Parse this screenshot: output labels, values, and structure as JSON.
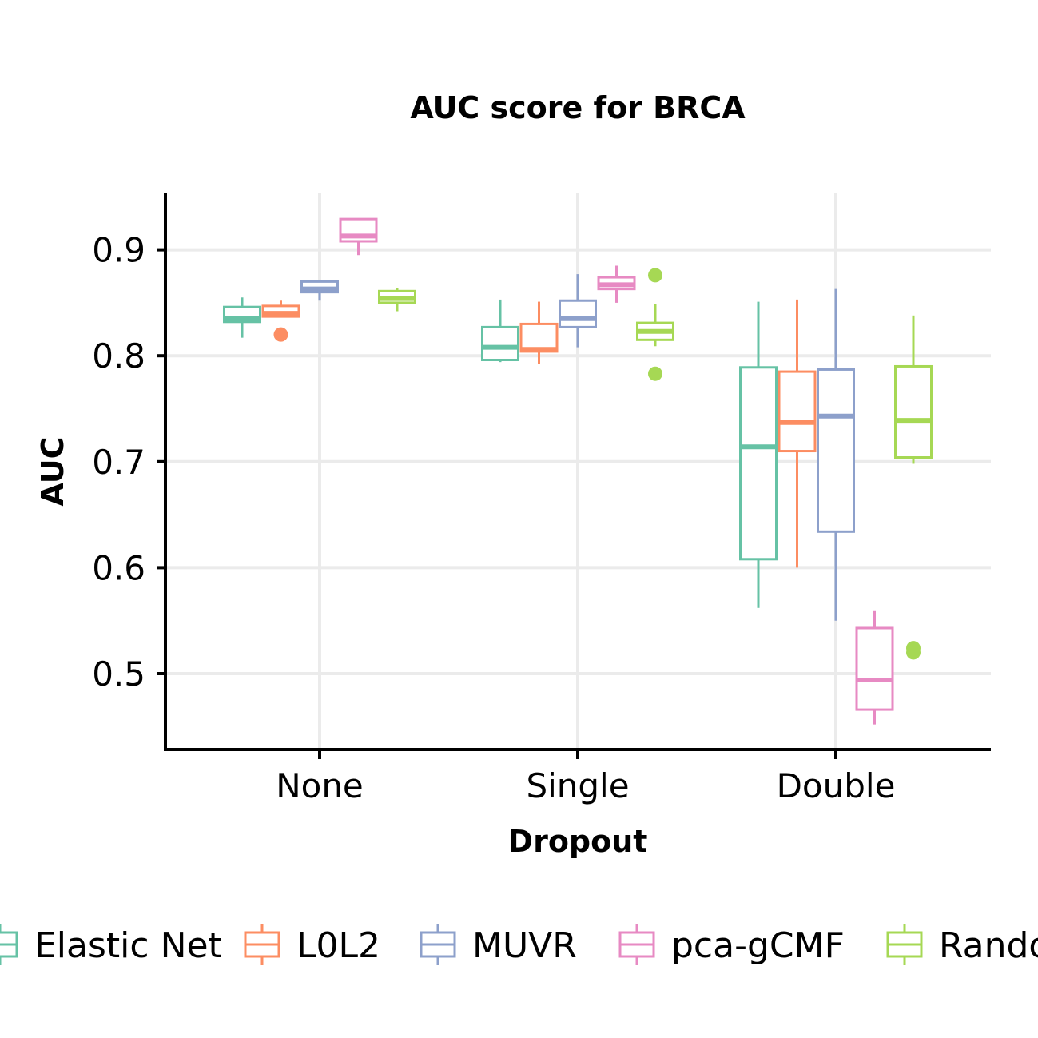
{
  "chart_data": {
    "type": "box",
    "title": "AUC score for BRCA",
    "xlabel": "Dropout",
    "ylabel": "AUC",
    "categories": [
      "None",
      "Single",
      "Double"
    ],
    "ylim": [
      0.425,
      0.95
    ],
    "yticks": [
      0.5,
      0.6,
      0.7,
      0.8,
      0.9
    ],
    "ytick_labels": [
      "0.5",
      "0.6",
      "0.7",
      "0.8",
      "0.9"
    ],
    "grid": true,
    "legend_position": "bottom",
    "series": [
      {
        "name": "Elastic Net",
        "color": "#66c2a5",
        "boxes": [
          {
            "category": "None",
            "whisker_low": 0.817,
            "q1": 0.832,
            "median": 0.835,
            "q3": 0.846,
            "whisker_high": 0.855,
            "outliers": []
          },
          {
            "category": "Single",
            "whisker_low": 0.794,
            "q1": 0.796,
            "median": 0.808,
            "q3": 0.827,
            "whisker_high": 0.853,
            "outliers": []
          },
          {
            "category": "Double",
            "whisker_low": 0.562,
            "q1": 0.608,
            "median": 0.714,
            "q3": 0.789,
            "whisker_high": 0.851,
            "outliers": []
          }
        ]
      },
      {
        "name": "L0L2",
        "color": "#fc8d62",
        "boxes": [
          {
            "category": "None",
            "whisker_low": 0.837,
            "q1": 0.837,
            "median": 0.84,
            "q3": 0.847,
            "whisker_high": 0.852,
            "outliers": [
              0.82
            ]
          },
          {
            "category": "Single",
            "whisker_low": 0.792,
            "q1": 0.804,
            "median": 0.806,
            "q3": 0.83,
            "whisker_high": 0.851,
            "outliers": []
          },
          {
            "category": "Double",
            "whisker_low": 0.6,
            "q1": 0.71,
            "median": 0.737,
            "q3": 0.785,
            "whisker_high": 0.853,
            "outliers": []
          }
        ]
      },
      {
        "name": "MUVR",
        "color": "#8da0cb",
        "boxes": [
          {
            "category": "None",
            "whisker_low": 0.852,
            "q1": 0.86,
            "median": 0.863,
            "q3": 0.87,
            "whisker_high": 0.87,
            "outliers": []
          },
          {
            "category": "Single",
            "whisker_low": 0.808,
            "q1": 0.827,
            "median": 0.835,
            "q3": 0.852,
            "whisker_high": 0.877,
            "outliers": []
          },
          {
            "category": "Double",
            "whisker_low": 0.55,
            "q1": 0.634,
            "median": 0.743,
            "q3": 0.787,
            "whisker_high": 0.863,
            "outliers": []
          }
        ]
      },
      {
        "name": "pca-gCMF",
        "color": "#e78ac3",
        "boxes": [
          {
            "category": "None",
            "whisker_low": 0.895,
            "q1": 0.908,
            "median": 0.913,
            "q3": 0.929,
            "whisker_high": 0.929,
            "outliers": []
          },
          {
            "category": "Single",
            "whisker_low": 0.85,
            "q1": 0.863,
            "median": 0.867,
            "q3": 0.874,
            "whisker_high": 0.885,
            "outliers": []
          },
          {
            "category": "Double",
            "whisker_low": 0.452,
            "q1": 0.466,
            "median": 0.494,
            "q3": 0.543,
            "whisker_high": 0.559,
            "outliers": []
          }
        ]
      },
      {
        "name": "Random Forest",
        "color": "#a6d854",
        "boxes": [
          {
            "category": "None",
            "whisker_low": 0.842,
            "q1": 0.85,
            "median": 0.854,
            "q3": 0.861,
            "whisker_high": 0.864,
            "outliers": []
          },
          {
            "category": "Single",
            "whisker_low": 0.809,
            "q1": 0.815,
            "median": 0.823,
            "q3": 0.831,
            "whisker_high": 0.849,
            "outliers": [
              0.876,
              0.783
            ]
          },
          {
            "category": "Double",
            "whisker_low": 0.698,
            "q1": 0.704,
            "median": 0.739,
            "q3": 0.79,
            "whisker_high": 0.838,
            "outliers": [
              0.524,
              0.52
            ]
          }
        ]
      }
    ]
  }
}
